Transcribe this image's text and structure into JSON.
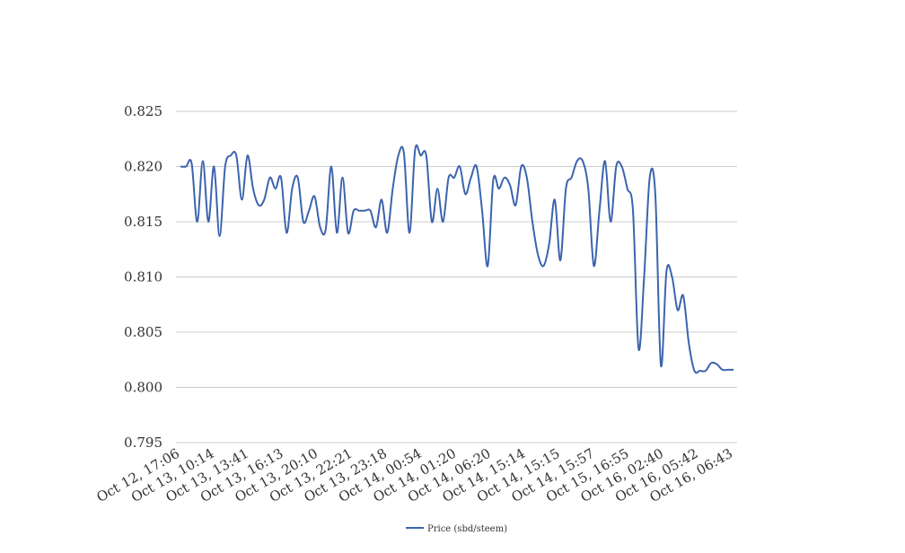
{
  "chart_data": {
    "type": "line",
    "title": "",
    "xlabel": "",
    "ylabel": "",
    "ylim": [
      0.795,
      0.825
    ],
    "yticks": [
      "0.795",
      "0.800",
      "0.805",
      "0.810",
      "0.815",
      "0.820",
      "0.825"
    ],
    "grid": true,
    "legend_position": "bottom-center",
    "x_tick_labels": [
      "Oct 12, 17:06",
      "Oct 13, 10:14",
      "Oct 13, 13:41",
      "Oct 13, 16:13",
      "Oct 13, 20:10",
      "Oct 13, 22:21",
      "Oct 13, 23:18",
      "Oct 14, 00:54",
      "Oct 14, 01:20",
      "Oct 14, 06:20",
      "Oct 14, 15:14",
      "Oct 14, 15:15",
      "Oct 14, 15:57",
      "Oct 15, 16:55",
      "Oct 16, 02:40",
      "Oct 16, 05:42",
      "Oct 16, 06:43"
    ],
    "series": [
      {
        "name": "Price (sbd/steem)",
        "color": "#3b64ad",
        "values": [
          0.82,
          0.82,
          0.8203,
          0.815,
          0.8205,
          0.815,
          0.82,
          0.8137,
          0.82,
          0.821,
          0.821,
          0.817,
          0.821,
          0.818,
          0.8165,
          0.817,
          0.819,
          0.818,
          0.819,
          0.814,
          0.818,
          0.819,
          0.815,
          0.816,
          0.8173,
          0.8145,
          0.8143,
          0.82,
          0.814,
          0.819,
          0.814,
          0.816,
          0.816,
          0.816,
          0.816,
          0.8145,
          0.817,
          0.814,
          0.818,
          0.821,
          0.8212,
          0.814,
          0.8215,
          0.821,
          0.821,
          0.815,
          0.818,
          0.815,
          0.819,
          0.819,
          0.82,
          0.8175,
          0.819,
          0.82,
          0.816,
          0.811,
          0.8188,
          0.818,
          0.819,
          0.8183,
          0.8165,
          0.82,
          0.819,
          0.815,
          0.812,
          0.811,
          0.813,
          0.817,
          0.8115,
          0.818,
          0.819,
          0.8205,
          0.8205,
          0.818,
          0.811,
          0.816,
          0.8205,
          0.815,
          0.82,
          0.82,
          0.818,
          0.816,
          0.8035,
          0.81,
          0.819,
          0.8175,
          0.802,
          0.8105,
          0.81,
          0.807,
          0.8083,
          0.804,
          0.8015,
          0.8015,
          0.8015,
          0.8022,
          0.8021,
          0.8016,
          0.8016,
          0.8016
        ]
      }
    ]
  },
  "legend": {
    "label": "Price (sbd/steem)",
    "color": "#3b64ad"
  },
  "colors": {
    "line": "#3b64ad",
    "grid": "#cccccc",
    "text": "#333333"
  }
}
